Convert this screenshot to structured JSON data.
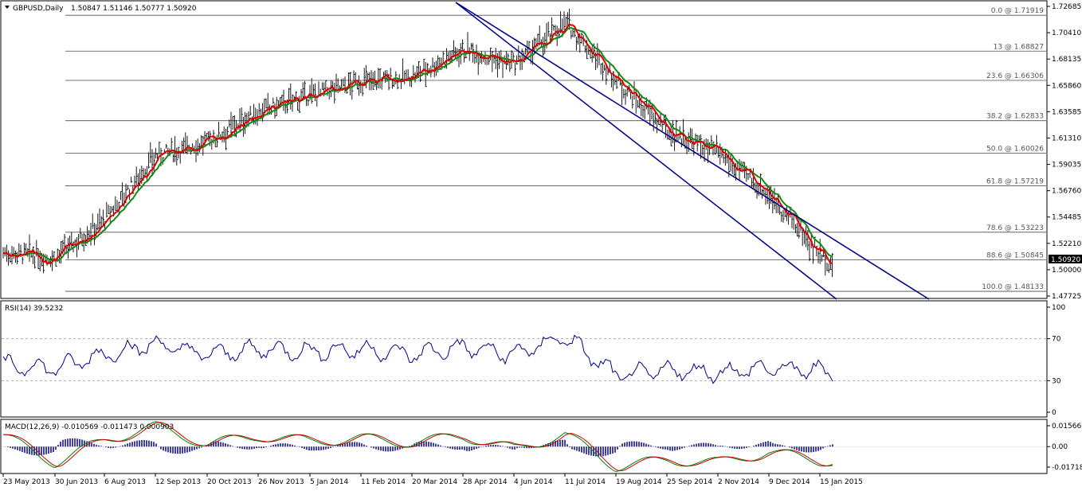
{
  "main_panel": {
    "header": {
      "symbol": "GBPUSD,Daily",
      "ohlc": "1.50847 1.51146 1.50777 1.50920"
    },
    "price_axis_labels": [
      "1.72685",
      "1.70410",
      "1.68135",
      "1.65860",
      "1.63585",
      "1.61310",
      "1.59035",
      "1.56760",
      "1.54485",
      "1.52210",
      "1.50000",
      "1.47725"
    ],
    "current_price_label": "1.50920",
    "fib_levels": [
      {
        "label": "0.0 @ 1.71919",
        "price": 1.71919
      },
      {
        "label": "13 @ 1.68827",
        "price": 1.68827
      },
      {
        "label": "23.6 @ 1.66306",
        "price": 1.66306
      },
      {
        "label": "38.2 @ 1.62833",
        "price": 1.62833
      },
      {
        "label": "50.0 @ 1.60026",
        "price": 1.60026
      },
      {
        "label": "61.8 @ 1.57219",
        "price": 1.57219
      },
      {
        "label": "78.6 @ 1.53223",
        "price": 1.53223
      },
      {
        "label": "88.6 @ 1.50845",
        "price": 1.50845
      },
      {
        "label": "100.0 @ 1.48133",
        "price": 1.48133
      }
    ]
  },
  "rsi_panel": {
    "header": "RSI(14) 39.5232",
    "axis_labels": [
      "100",
      "70",
      "30",
      "0"
    ]
  },
  "macd_panel": {
    "header": "MACD(12,26,9) -0.010569 -0.011473 0.000903",
    "axis_labels": [
      "0.015669",
      "0.00",
      "-0.01718"
    ]
  },
  "time_axis_labels": [
    "23 May 2013",
    "30 Jun 2013",
    "6 Aug 2013",
    "12 Sep 2013",
    "20 Oct 2013",
    "26 Nov 2013",
    "5 Jan 2014",
    "11 Feb 2014",
    "20 Mar 2014",
    "28 Apr 2014",
    "4 Jun 2014",
    "11 Jul 2014",
    "19 Aug 2014",
    "25 Sep 2014",
    "2 Nov 2014",
    "9 Dec 2014",
    "15 Jan 2015"
  ],
  "colors": {
    "price_bars": "#000000",
    "ma_fast": "#e00000",
    "ma_slow": "#138a13",
    "ma_cross": "#d4d400",
    "channel": "#00008b",
    "rsi_line": "#00008b",
    "macd_hist": "#00008b",
    "macd_main": "#008000",
    "macd_signal": "#cc0000",
    "price_tag_bg": "#000000"
  },
  "chart_data": [
    {
      "type": "line",
      "name": "GBPUSD,Daily",
      "x": [
        "23 May 2013",
        "30 Jun 2013",
        "6 Aug 2013",
        "12 Sep 2013",
        "20 Oct 2013",
        "26 Nov 2013",
        "5 Jan 2014",
        "11 Feb 2014",
        "20 Mar 2014",
        "28 Apr 2014",
        "4 Jun 2014",
        "11 Jul 2014",
        "19 Aug 2014",
        "25 Sep 2014",
        "2 Nov 2014",
        "9 Dec 2014",
        "15 Jan 2015"
      ],
      "y": [
        1.515,
        1.51,
        1.543,
        1.598,
        1.61,
        1.636,
        1.65,
        1.662,
        1.666,
        1.69,
        1.676,
        1.713,
        1.663,
        1.62,
        1.6,
        1.565,
        1.513
      ],
      "ylim": [
        1.47725,
        1.72685
      ],
      "annotations": [
        "Fibonacci retracement 0.0 to 100.0",
        "descending channel"
      ]
    },
    {
      "type": "line",
      "name": "RSI(14)",
      "x": [
        "23 May 2013",
        "30 Jun 2013",
        "6 Aug 2013",
        "12 Sep 2013",
        "20 Oct 2013",
        "26 Nov 2013",
        "5 Jan 2014",
        "11 Feb 2014",
        "20 Mar 2014",
        "28 Apr 2014",
        "4 Jun 2014",
        "11 Jul 2014",
        "19 Aug 2014",
        "25 Sep 2014",
        "2 Nov 2014",
        "9 Dec 2014",
        "15 Jan 2015"
      ],
      "y": [
        45,
        42,
        55,
        65,
        55,
        60,
        58,
        60,
        55,
        62,
        55,
        72,
        35,
        40,
        38,
        42,
        39.5
      ],
      "ylim": [
        0,
        100
      ],
      "levels": [
        70,
        30
      ]
    },
    {
      "type": "line",
      "name": "MACD(12,26,9)",
      "x": [
        "23 May 2013",
        "30 Jun 2013",
        "6 Aug 2013",
        "12 Sep 2013",
        "20 Oct 2013",
        "26 Nov 2013",
        "5 Jan 2014",
        "11 Feb 2014",
        "20 Mar 2014",
        "28 Apr 2014",
        "4 Jun 2014",
        "11 Jul 2014",
        "19 Aug 2014",
        "25 Sep 2014",
        "2 Nov 2014",
        "9 Dec 2014",
        "15 Jan 2015"
      ],
      "y": [
        0.008,
        -0.012,
        0.005,
        0.015,
        0.002,
        0.008,
        0.004,
        0.006,
        0.003,
        0.008,
        -0.002,
        0.009,
        -0.015,
        -0.01,
        -0.012,
        -0.004,
        -0.0106
      ],
      "ylim": [
        -0.01718,
        0.015669
      ]
    }
  ]
}
